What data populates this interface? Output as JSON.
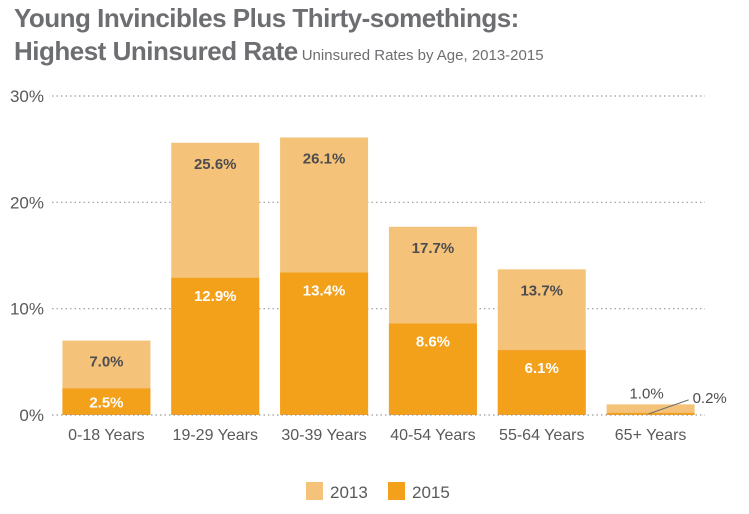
{
  "title_line1": "Young Invincibles Plus Thirty-somethings:",
  "title_line2": "Highest Uninsured Rate",
  "subtitle": "Uninsured Rates by Age, 2013-2015",
  "colors": {
    "c2013": "#f5c27a",
    "c2015": "#f3a01b",
    "text": "#58595b",
    "grid": "#9a9a9a",
    "title": "#6d6e71"
  },
  "chart_data": {
    "type": "bar",
    "categories": [
      "0-18 Years",
      "19-29 Years",
      "30-39 Years",
      "40-54 Years",
      "55-64 Years",
      "65+ Years"
    ],
    "series": [
      {
        "name": "2013",
        "values": [
          7.0,
          25.6,
          26.1,
          17.7,
          13.7,
          1.0
        ],
        "labels": [
          "7.0%",
          "25.6%",
          "26.1%",
          "17.7%",
          "13.7%",
          "1.0%"
        ]
      },
      {
        "name": "2015",
        "values": [
          2.5,
          12.9,
          13.4,
          8.6,
          6.1,
          0.2
        ],
        "labels": [
          "2.5%",
          "12.9%",
          "13.4%",
          "8.6%",
          "6.1%",
          "0.2%"
        ]
      }
    ],
    "yticks": [
      "0%",
      "10%",
      "20%",
      "30%"
    ],
    "ylim": [
      0,
      30
    ],
    "legend": [
      "2013",
      "2015"
    ],
    "grid": true,
    "legend_position": "bottom-center"
  }
}
